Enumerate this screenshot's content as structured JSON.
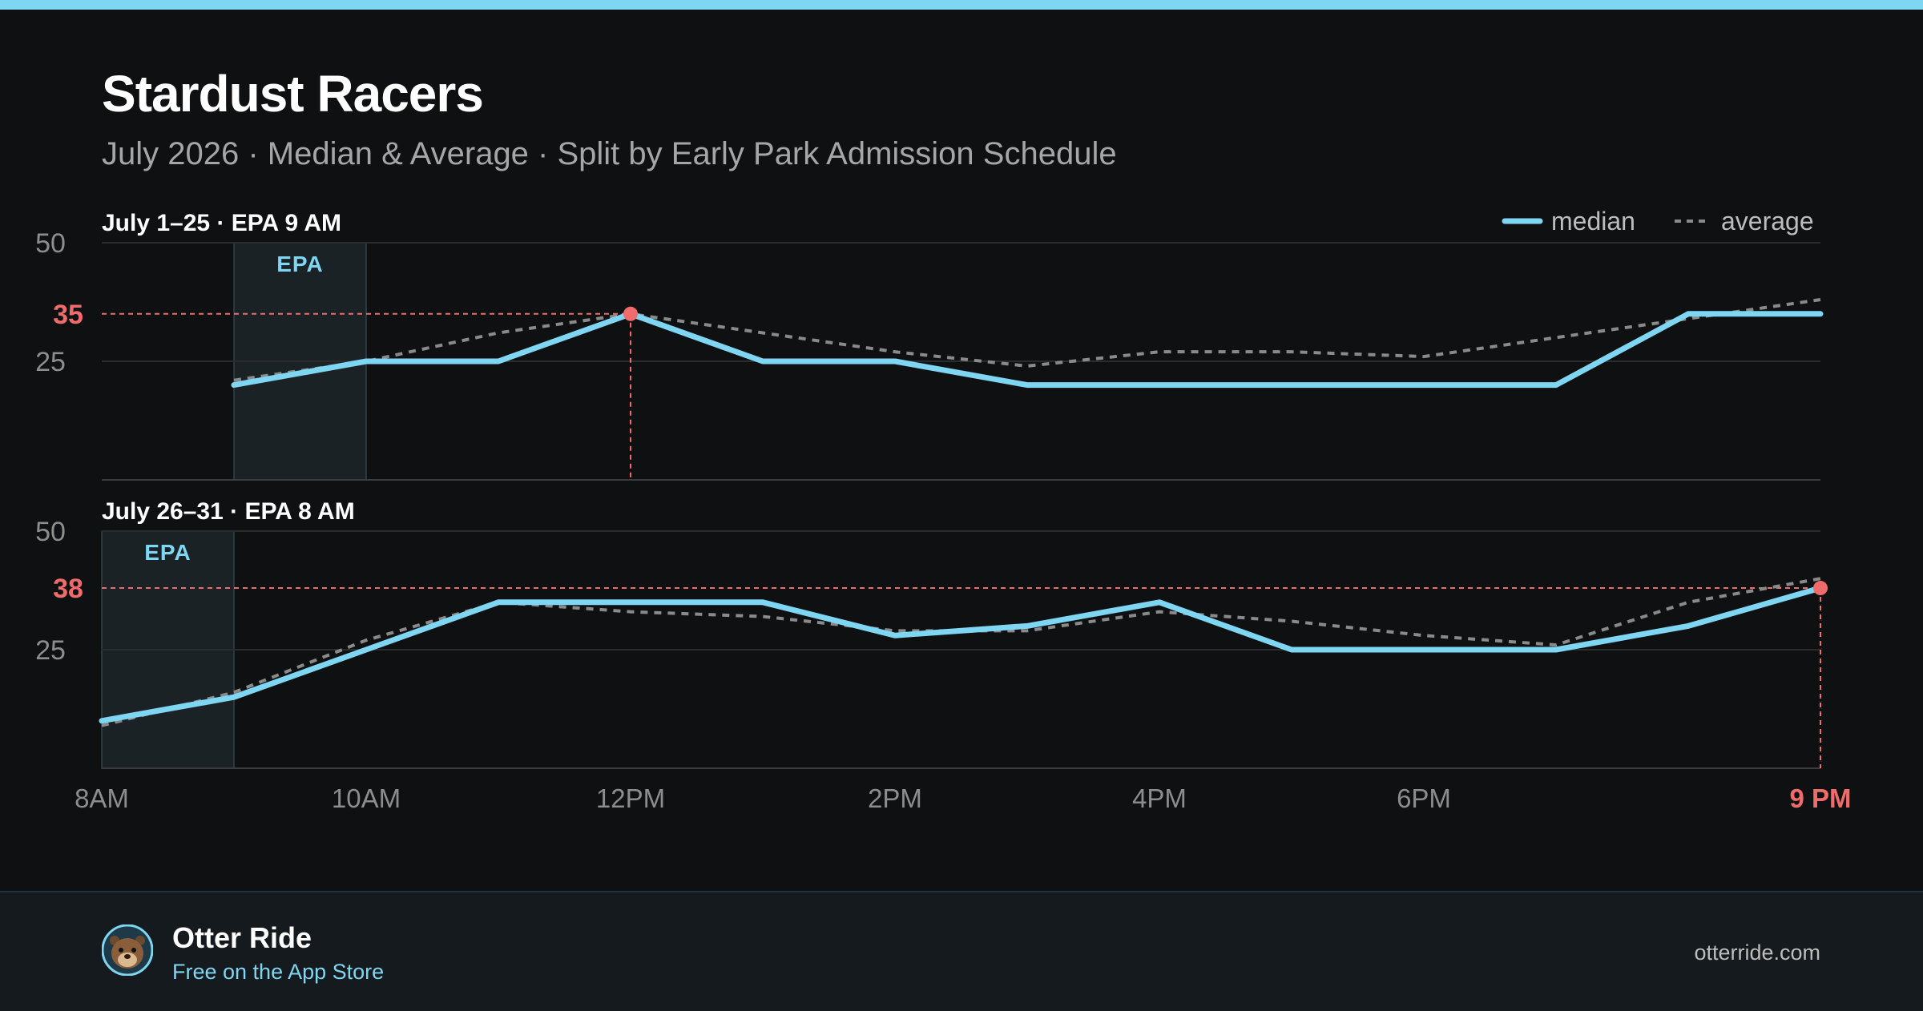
{
  "header": {
    "title": "Stardust Racers",
    "subtitle": "July 2026 · Median & Average · Split by Early Park Admission Schedule"
  },
  "legend": {
    "median_label": "median",
    "average_label": "average",
    "placement": "top-right"
  },
  "colors": {
    "median": "#7fd6f2",
    "average": "#8a8a8a",
    "highlight": "#f06b6b",
    "epa_fill": "#1b2226",
    "epa_text": "#7fd6f2",
    "grid": "#2a2c2e"
  },
  "x_axis": {
    "ticks": [
      "8AM",
      "10AM",
      "12PM",
      "2PM",
      "4PM",
      "6PM"
    ],
    "end_label": "9 PM"
  },
  "chart_data": [
    {
      "type": "line",
      "title": "July 1–25 · EPA 9 AM",
      "x_hours": [
        9,
        10,
        11,
        12,
        13,
        14,
        15,
        16,
        17,
        18,
        19,
        20,
        21
      ],
      "series": [
        {
          "name": "median",
          "values": [
            20,
            25,
            25,
            35,
            25,
            25,
            20,
            20,
            20,
            20,
            20,
            35,
            35
          ]
        },
        {
          "name": "average",
          "values": [
            21,
            25,
            31,
            35,
            31,
            27,
            24,
            27,
            27,
            26,
            30,
            34,
            38
          ]
        }
      ],
      "y_ticks": [
        25,
        50
      ],
      "ylim": [
        0,
        50
      ],
      "highlight": {
        "label": "35",
        "value": 35,
        "x_hour": 12
      },
      "epa_band": {
        "label": "EPA",
        "from_hour": 9,
        "to_hour": 10
      },
      "grid": true
    },
    {
      "type": "line",
      "title": "July 26–31 · EPA 8 AM",
      "x_hours": [
        8,
        9,
        10,
        11,
        12,
        13,
        14,
        15,
        16,
        17,
        18,
        19,
        20,
        21
      ],
      "series": [
        {
          "name": "median",
          "values": [
            10,
            15,
            25,
            35,
            35,
            35,
            28,
            30,
            35,
            25,
            25,
            25,
            30,
            38
          ]
        },
        {
          "name": "average",
          "values": [
            9,
            16,
            27,
            35,
            33,
            32,
            29,
            29,
            33,
            31,
            28,
            26,
            35,
            40
          ]
        }
      ],
      "y_ticks": [
        25,
        50
      ],
      "ylim": [
        0,
        50
      ],
      "highlight": {
        "label": "38",
        "value": 38,
        "x_hour": 21
      },
      "epa_band": {
        "label": "EPA",
        "from_hour": 8,
        "to_hour": 9
      },
      "grid": true
    }
  ],
  "footer": {
    "brand": "Otter Ride",
    "tagline": "Free on the App Store",
    "site": "otterride.com",
    "avatar_icon": "otter-avatar-icon"
  }
}
